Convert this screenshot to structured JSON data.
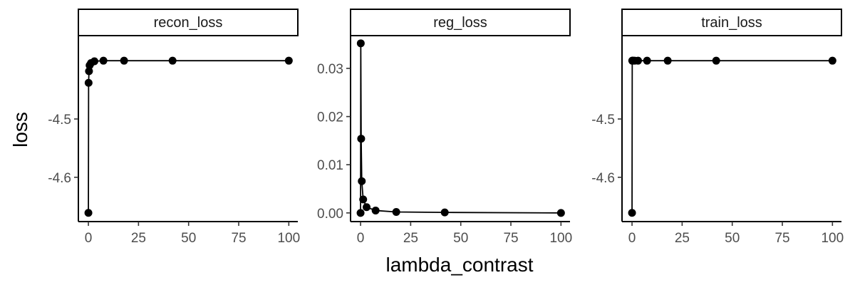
{
  "chart_data": {
    "type": "line",
    "xlabel": "lambda_contrast",
    "ylabel": "loss",
    "grid": false,
    "facets": [
      {
        "title": "recon_loss",
        "xlim": [
          -5,
          104.5
        ],
        "ylim": [
          -4.676,
          -4.357
        ],
        "xticks": [
          0,
          25,
          50,
          75,
          100
        ],
        "xtick_labels": [
          "0",
          "25",
          "50",
          "75",
          "100"
        ],
        "yticks": [
          -4.5,
          -4.6
        ],
        "ytick_labels": [
          "-4.5",
          "-4.6"
        ],
        "x": [
          0,
          0.1,
          0.3,
          0.6,
          1.3,
          3,
          7.5,
          17.8,
          42,
          100
        ],
        "y": [
          -4.661,
          -4.438,
          -4.418,
          -4.408,
          -4.404,
          -4.401,
          -4.4,
          -4.4,
          -4.4,
          -4.4
        ]
      },
      {
        "title": "reg_loss",
        "xlim": [
          -5,
          104.5
        ],
        "ylim": [
          -0.0018,
          0.0368
        ],
        "xticks": [
          0,
          25,
          50,
          75,
          100
        ],
        "xtick_labels": [
          "0",
          "25",
          "50",
          "75",
          "100"
        ],
        "yticks": [
          0.0,
          0.01,
          0.02,
          0.03
        ],
        "ytick_labels": [
          "0.00",
          "0.01",
          "0.02",
          "0.03"
        ],
        "x": [
          0,
          0.1,
          0.3,
          0.6,
          1.3,
          3,
          7.5,
          17.8,
          42,
          100
        ],
        "y": [
          0.0,
          0.0352,
          0.0154,
          0.0066,
          0.0028,
          0.0012,
          0.0005,
          0.0002,
          0.0001,
          0.0
        ]
      },
      {
        "title": "train_loss",
        "xlim": [
          -5,
          104.5
        ],
        "ylim": [
          -4.676,
          -4.357
        ],
        "xticks": [
          0,
          25,
          50,
          75,
          100
        ],
        "xtick_labels": [
          "0",
          "25",
          "50",
          "75",
          "100"
        ],
        "yticks": [
          -4.5,
          -4.6
        ],
        "ytick_labels": [
          "-4.5",
          "-4.6"
        ],
        "x": [
          0,
          0.1,
          0.3,
          0.6,
          1.3,
          3,
          7.5,
          17.8,
          42,
          100
        ],
        "y": [
          -4.661,
          -4.4,
          -4.4,
          -4.4,
          -4.4,
          -4.4,
          -4.4,
          -4.4,
          -4.4,
          -4.4
        ]
      }
    ]
  }
}
